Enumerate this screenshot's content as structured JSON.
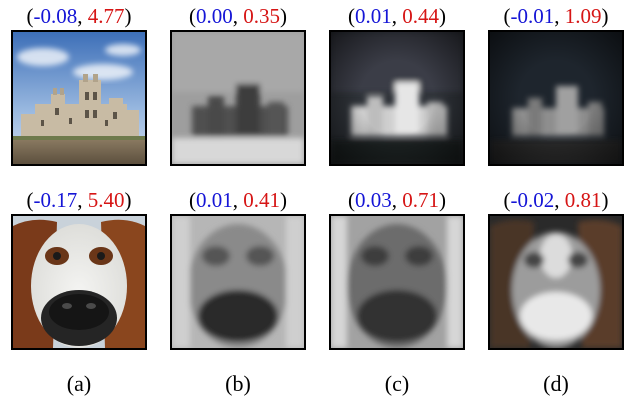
{
  "rows": [
    {
      "subject": "castle",
      "panels": [
        {
          "first": "-0.08",
          "second": "4.77"
        },
        {
          "first": "0.00",
          "second": "0.35"
        },
        {
          "first": "0.01",
          "second": "0.44"
        },
        {
          "first": "-0.01",
          "second": "1.09"
        }
      ]
    },
    {
      "subject": "dog",
      "panels": [
        {
          "first": "-0.17",
          "second": "5.40"
        },
        {
          "first": "0.01",
          "second": "0.41"
        },
        {
          "first": "0.03",
          "second": "0.71"
        },
        {
          "first": "-0.02",
          "second": "0.81"
        }
      ]
    }
  ],
  "column_labels": [
    "(a)",
    "(b)",
    "(c)",
    "(d)"
  ],
  "colors": {
    "first_value": "#1515d6",
    "second_value": "#d61515"
  }
}
